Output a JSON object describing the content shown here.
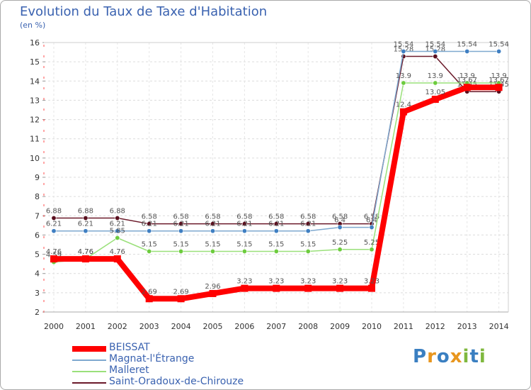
{
  "chart_data": {
    "type": "line",
    "title": "Evolution du Taux de Taxe d'Habitation",
    "ylabel": "(en %)",
    "xlabel": "",
    "ylim": [
      2,
      16
    ],
    "yticks": [
      2,
      3,
      4,
      5,
      6,
      7,
      8,
      9,
      10,
      11,
      12,
      13,
      14,
      15,
      16
    ],
    "x": [
      "2000",
      "2001",
      "2002",
      "2003",
      "2004",
      "2005",
      "2006",
      "2007",
      "2008",
      "2009",
      "2010",
      "2011",
      "2012",
      "2013",
      "2014"
    ],
    "series": [
      {
        "name": "Saint-Oradoux-de-Chirouze",
        "color": "#6b1a2a",
        "marker": "#5a0f1e",
        "values": [
          6.88,
          6.88,
          6.88,
          6.58,
          6.58,
          6.58,
          6.58,
          6.58,
          6.58,
          6.58,
          6.58,
          15.28,
          15.28,
          13.45,
          13.45
        ]
      },
      {
        "name": "Magnat-l'Étrange",
        "color": "#7fa9cf",
        "marker": "#3f7fc2",
        "values": [
          6.21,
          6.21,
          6.21,
          6.21,
          6.21,
          6.21,
          6.21,
          6.21,
          6.21,
          6.4,
          6.4,
          15.54,
          15.54,
          15.54,
          15.54
        ]
      },
      {
        "name": "Malleret",
        "color": "#9ae07a",
        "marker": "#6dcc3e",
        "values": [
          4.59,
          4.76,
          5.85,
          5.15,
          5.15,
          5.15,
          5.15,
          5.15,
          5.15,
          5.25,
          5.25,
          13.9,
          13.9,
          13.9,
          13.9
        ]
      },
      {
        "name": "BEISSAT",
        "color": "#ff0000",
        "marker": "#ff0000",
        "values": [
          4.76,
          4.76,
          4.76,
          2.69,
          2.69,
          2.96,
          3.23,
          3.23,
          3.23,
          3.23,
          3.23,
          12.4,
          13.05,
          13.67,
          13.67
        ]
      }
    ],
    "data_labels": {
      "Saint-Oradoux-de-Chirouze": [
        "6.88",
        "6.88",
        "6.88",
        "6.58",
        "6.58",
        "6.58",
        "6.58",
        "6.58",
        "6.58",
        "6.58",
        "6.58",
        "15.28",
        "15.28",
        "13.45",
        "13.45"
      ],
      "Magnat-l'Étrange": [
        "6.21",
        "6.21",
        "6.21",
        "6.21",
        "6.21",
        "6.21",
        "6.21",
        "6.21",
        "6.21",
        "6.4",
        "6.4",
        "15.54",
        "15.54",
        "15.54",
        "15.54"
      ],
      "Malleret": [
        "4.59",
        "4.76",
        "5.85",
        "5.15",
        "5.15",
        "5.15",
        "5.15",
        "5.15",
        "5.15",
        "5.25",
        "5.25",
        "13.9",
        "13.9",
        "13.9",
        "13.9"
      ],
      "BEISSAT": [
        "4.76",
        "4.76",
        "4.76",
        "2.69",
        "2.69",
        "2.96",
        "3.23",
        "3.23",
        "3.23",
        "3.23",
        "3.23",
        "12.4",
        "13.05",
        "13.67",
        "13.67"
      ]
    },
    "grid": true,
    "legend_position": "bottom-left",
    "legend": [
      "BEISSAT",
      "Magnat-l'Étrange",
      "Malleret",
      "Saint-Oradoux-de-Chirouze"
    ]
  },
  "header": {
    "title": "Evolution du Taux de Taxe d'Habitation",
    "subtitle": "(en %)"
  },
  "legend": {
    "items": [
      {
        "label": "BEISSAT",
        "color": "#ff0000",
        "weight": "thick"
      },
      {
        "label": "Magnat-l'Étrange",
        "color": "#7fa9cf",
        "weight": "thin"
      },
      {
        "label": "Malleret",
        "color": "#9ae07a",
        "weight": "thin"
      },
      {
        "label": "Saint-Oradoux-de-Chirouze",
        "color": "#6b1a2a",
        "weight": "thin"
      }
    ]
  },
  "logo": {
    "text": "Proxiti",
    "colors": [
      "#3a7fc1",
      "#e8961e",
      "#3a7fc1",
      "#e8961e",
      "#7fb83e",
      "#3a7fc1",
      "#7fb83e"
    ]
  }
}
